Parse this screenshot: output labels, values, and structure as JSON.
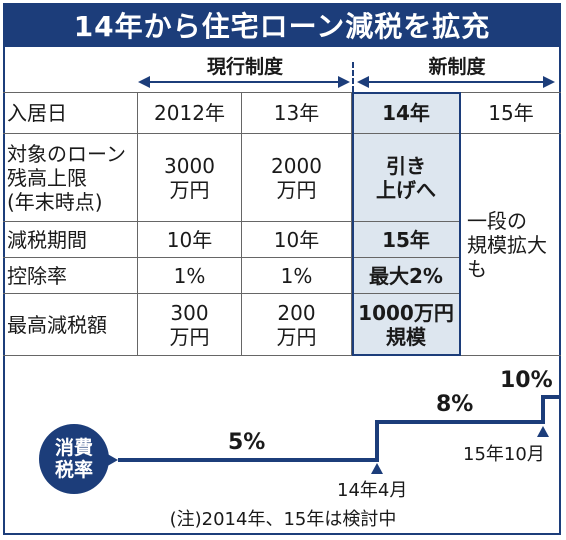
{
  "title": "14年から住宅ローン減税を拡充",
  "headers": {
    "current": "現行制度",
    "new": "新制度"
  },
  "table": {
    "rows": [
      {
        "label": "入居日",
        "c2012": "2012年",
        "c13": "13年",
        "c14": "14年",
        "c15": "15年"
      },
      {
        "label": "対象のローン\n残高上限\n(年末時点)",
        "c2012": "3000\n万円",
        "c13": "2000\n万円",
        "c14": "引き\n上げへ"
      },
      {
        "label": "減税期間",
        "c2012": "10年",
        "c13": "10年",
        "c14": "15年"
      },
      {
        "label": "控除率",
        "c2012": "1%",
        "c13": "1%",
        "c14": "最大2%"
      },
      {
        "label": "最高減税額",
        "c2012": "300\n万円",
        "c13": "200\n万円",
        "c14": "1000万円\n規模"
      }
    ],
    "col15_merged": "一段の\n規模拡大\nも"
  },
  "tax": {
    "badge": "消費\n税率",
    "rates": [
      "5%",
      "8%",
      "10%"
    ],
    "dates": [
      "14年4月",
      "15年10月"
    ]
  },
  "note": "(注)2014年、15年は検討中"
}
